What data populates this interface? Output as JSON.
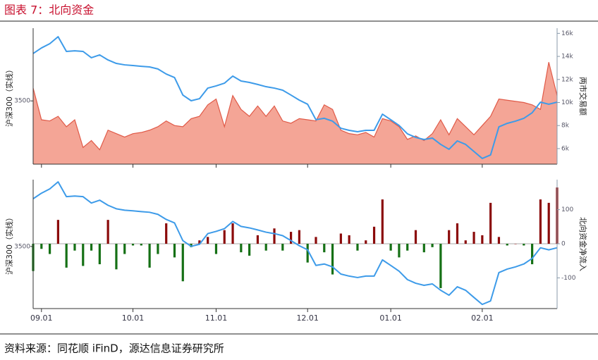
{
  "title": "图表 7：北向资金",
  "source": "资料来源：同花顺 iFinD，源达信息证券研究所",
  "chart_data": [
    {
      "type": "line",
      "ylabel": "沪深300（实线）",
      "y2label": "两市交易额",
      "ylim": [
        3100,
        3960
      ],
      "yticks": [
        3500
      ],
      "y2lim": [
        4650,
        16450
      ],
      "y2ticks": [
        {
          "value": 6000,
          "label": "6k"
        },
        {
          "value": 8000,
          "label": "8k"
        },
        {
          "value": 10000,
          "label": "10k"
        },
        {
          "value": 12000,
          "label": "12k"
        },
        {
          "value": 14000,
          "label": "14k"
        },
        {
          "value": 16000,
          "label": "16k"
        }
      ],
      "series": [
        {
          "type": "area",
          "axis": "y2",
          "color": "#f4a596",
          "line_color": "#e05a48",
          "values": [
            11250,
            8500,
            8400,
            8800,
            7900,
            8500,
            6100,
            6700,
            5900,
            7600,
            7300,
            7000,
            7300,
            7400,
            7600,
            7900,
            8400,
            8000,
            7900,
            8600,
            8800,
            9800,
            10300,
            7900,
            10600,
            9400,
            8800,
            9700,
            8800,
            9700,
            8400,
            8200,
            8600,
            8500,
            8400,
            9800,
            9400,
            7600,
            7300,
            7200,
            7400,
            7000,
            8600,
            8400,
            7900,
            6800,
            7100,
            6700,
            7300,
            8500,
            7200,
            8600,
            7900,
            7200,
            8000,
            8800,
            10300,
            10200,
            10100,
            10000,
            9800,
            9400,
            13500,
            10600
          ]
        },
        {
          "type": "line",
          "color": "#3d9be9",
          "values": [
            3800,
            3835,
            3862,
            3906,
            3813,
            3817,
            3813,
            3773,
            3791,
            3759,
            3737,
            3728,
            3724,
            3719,
            3715,
            3702,
            3670,
            3648,
            3537,
            3501,
            3514,
            3581,
            3595,
            3612,
            3657,
            3626,
            3617,
            3604,
            3590,
            3581,
            3568,
            3537,
            3505,
            3479,
            3381,
            3390,
            3372,
            3327,
            3314,
            3305,
            3314,
            3314,
            3416,
            3381,
            3345,
            3292,
            3269,
            3256,
            3265,
            3225,
            3194,
            3247,
            3225,
            3180,
            3136,
            3158,
            3336,
            3358,
            3372,
            3390,
            3425,
            3492,
            3479,
            3492
          ]
        }
      ]
    },
    {
      "type": "bar",
      "ylabel": "沪深300（实线）",
      "y2label": "北向资金净流入",
      "categories": [
        null,
        "09.01",
        null,
        null,
        null,
        null,
        null,
        null,
        null,
        null,
        null,
        null,
        "10.01",
        null,
        null,
        null,
        null,
        null,
        null,
        null,
        null,
        null,
        "11.01",
        null,
        null,
        null,
        null,
        null,
        null,
        null,
        null,
        null,
        null,
        "12.01",
        null,
        null,
        null,
        null,
        null,
        null,
        null,
        null,
        null,
        "01.01",
        null,
        null,
        null,
        null,
        null,
        null,
        null,
        null,
        null,
        null,
        "02.01",
        null,
        null,
        null,
        null,
        null,
        null,
        null,
        null,
        null
      ],
      "ylim": [
        3110,
        3920
      ],
      "yticks": [
        3500
      ],
      "y2lim": [
        -190,
        188
      ],
      "y2ticks": [
        -100,
        0,
        100
      ],
      "series": [
        {
          "type": "bar",
          "axis": "y2",
          "color_positive": "#8b0a0a",
          "color_negative": "#157015",
          "values": [
            -80,
            -15,
            -30,
            70,
            -70,
            -20,
            -65,
            -20,
            -60,
            70,
            -75,
            -30,
            -5,
            -5,
            -70,
            -30,
            60,
            -40,
            -110,
            -10,
            10,
            20,
            -30,
            40,
            60,
            -25,
            -35,
            25,
            -20,
            45,
            -20,
            35,
            40,
            -55,
            20,
            -25,
            -90,
            30,
            25,
            -20,
            10,
            50,
            130,
            -20,
            -40,
            -20,
            40,
            -25,
            -10,
            -130,
            40,
            60,
            10,
            35,
            25,
            120,
            20,
            -5,
            0,
            -5,
            -60,
            130,
            120,
            165
          ]
        },
        {
          "type": "line",
          "color": "#3d9be9",
          "values": [
            3800,
            3835,
            3862,
            3906,
            3813,
            3817,
            3813,
            3773,
            3791,
            3759,
            3737,
            3728,
            3724,
            3719,
            3715,
            3702,
            3670,
            3648,
            3537,
            3501,
            3514,
            3581,
            3595,
            3612,
            3657,
            3626,
            3617,
            3604,
            3590,
            3581,
            3568,
            3537,
            3505,
            3479,
            3381,
            3390,
            3372,
            3327,
            3314,
            3305,
            3314,
            3314,
            3416,
            3381,
            3345,
            3292,
            3269,
            3256,
            3265,
            3225,
            3194,
            3247,
            3225,
            3180,
            3136,
            3158,
            3336,
            3358,
            3372,
            3390,
            3425,
            3492,
            3479,
            3492
          ]
        }
      ]
    }
  ]
}
